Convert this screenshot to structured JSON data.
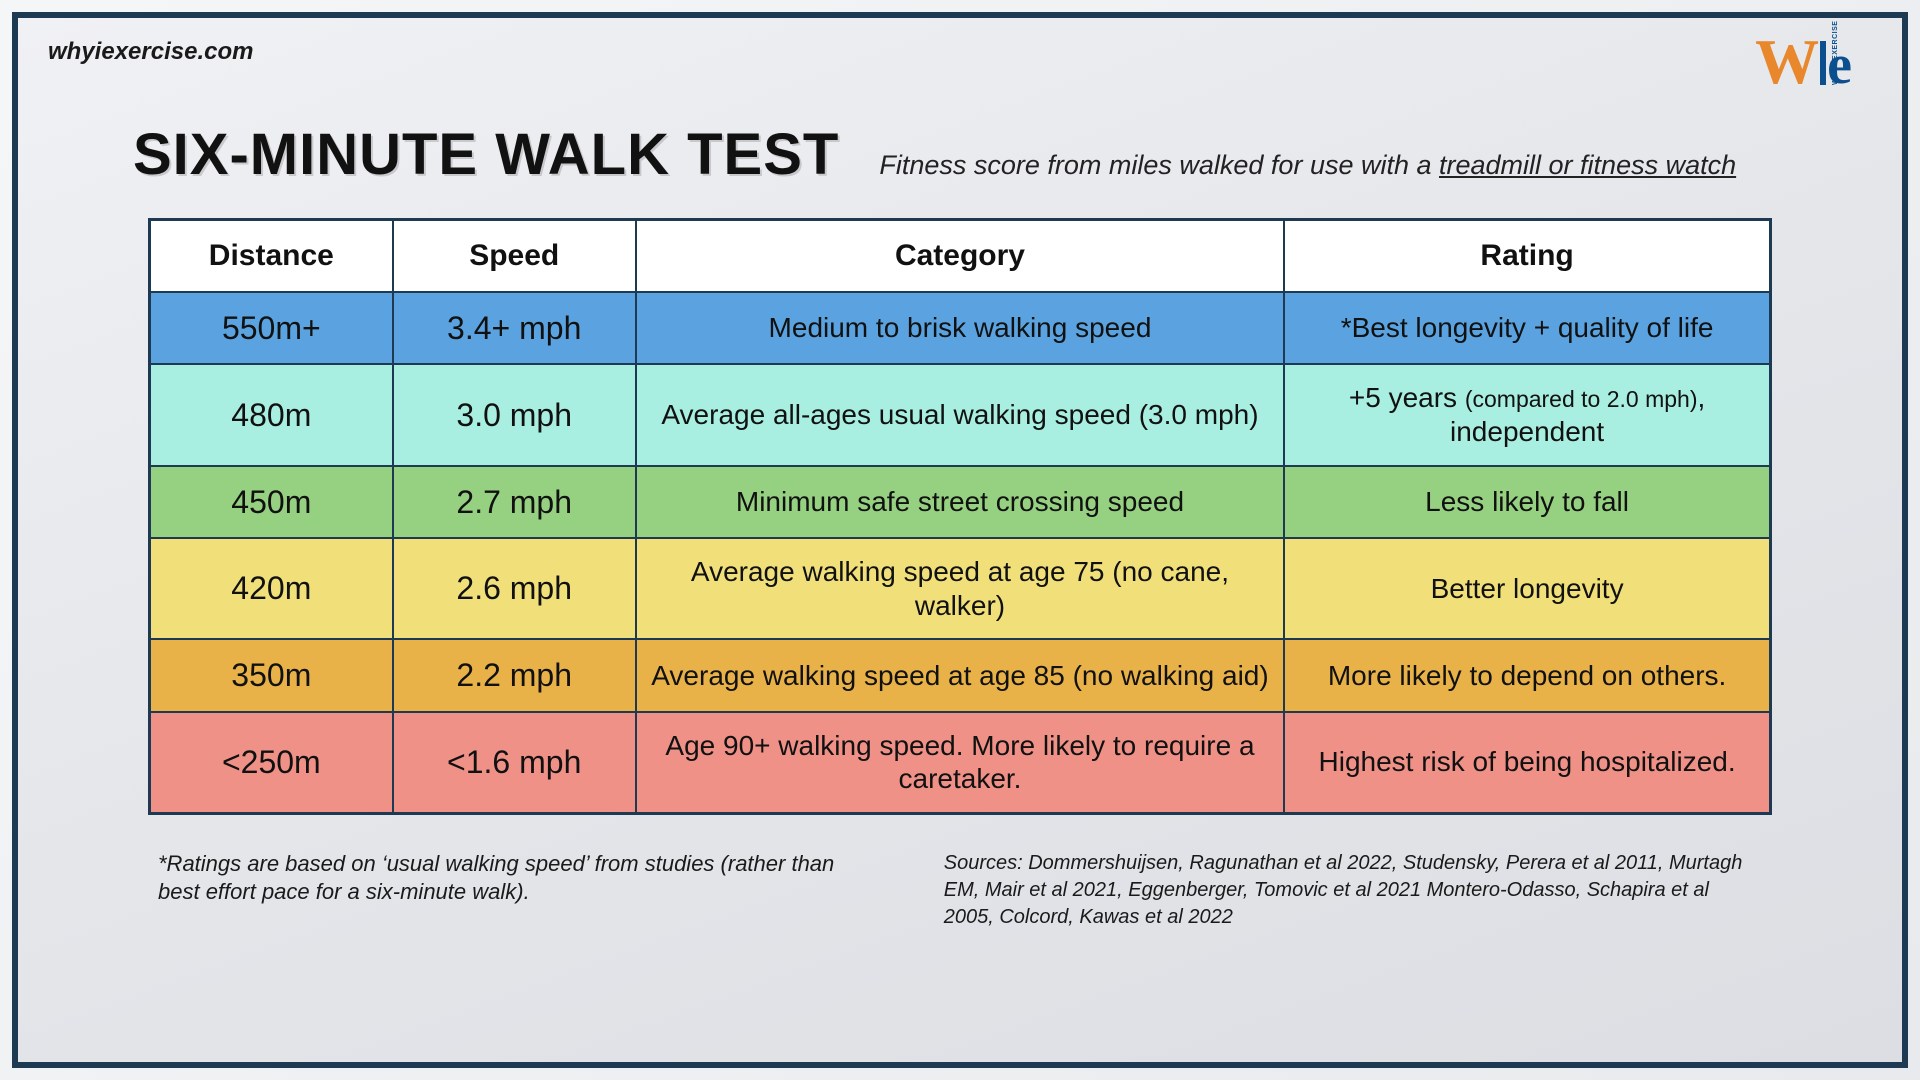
{
  "site_url": "whyiexercise.com",
  "logo": {
    "w": "W",
    "e": "e",
    "bar_text": "WHY I EXERCISE"
  },
  "title": "SIX-MINUTE WALK TEST",
  "subtitle_plain": "Fitness score from miles walked for use with a ",
  "subtitle_underline": "treadmill or fitness watch",
  "table": {
    "columns": [
      "Distance",
      "Speed",
      "Category",
      "Rating"
    ],
    "col_widths": [
      "15%",
      "15%",
      "40%",
      "30%"
    ],
    "header_bg": "#ffffff",
    "border_color": "#1e3a52",
    "rows": [
      {
        "distance": "550m+",
        "speed": "3.4+ mph",
        "category": "Medium to brisk walking speed",
        "rating": "*Best longevity + quality of life",
        "bg": "#5aa3e0"
      },
      {
        "distance": "480m",
        "speed": "3.0 mph",
        "category": "Average all-ages usual walking speed (3.0 mph)",
        "rating_html": "+5 years <span class=\"small-paren\">(compared to 2.0 mph)</span>, independent",
        "bg": "#a8eee1"
      },
      {
        "distance": "450m",
        "speed": "2.7 mph",
        "category": "Minimum safe street crossing speed",
        "rating": "Less likely to fall",
        "bg": "#96d181"
      },
      {
        "distance": "420m",
        "speed": "2.6 mph",
        "category": "Average walking speed at age 75 (no cane, walker)",
        "rating": "Better longevity",
        "bg": "#f1e07a"
      },
      {
        "distance": "350m",
        "speed": "2.2 mph",
        "category": "Average walking speed at age 85 (no walking aid)",
        "rating": "More likely to depend on others.",
        "bg": "#e8b249"
      },
      {
        "distance": "<250m",
        "speed": "<1.6 mph",
        "category": "Age 90+ walking speed. More likely to require a caretaker.",
        "rating": "Highest risk of being hospitalized.",
        "bg": "#ef9187"
      }
    ]
  },
  "footnote": "*Ratings are based on ‘usual walking speed’ from studies (rather than best effort pace for a six-minute walk).",
  "sources": "Sources: Dommershuijsen, Ragunathan et al 2022, Studensky, Perera et al 2011, Murtagh EM, Mair et al 2021, Eggenberger, Tomovic et al 2021 Montero-Odasso, Schapira et al 2005, Colcord, Kawas et al 2022"
}
